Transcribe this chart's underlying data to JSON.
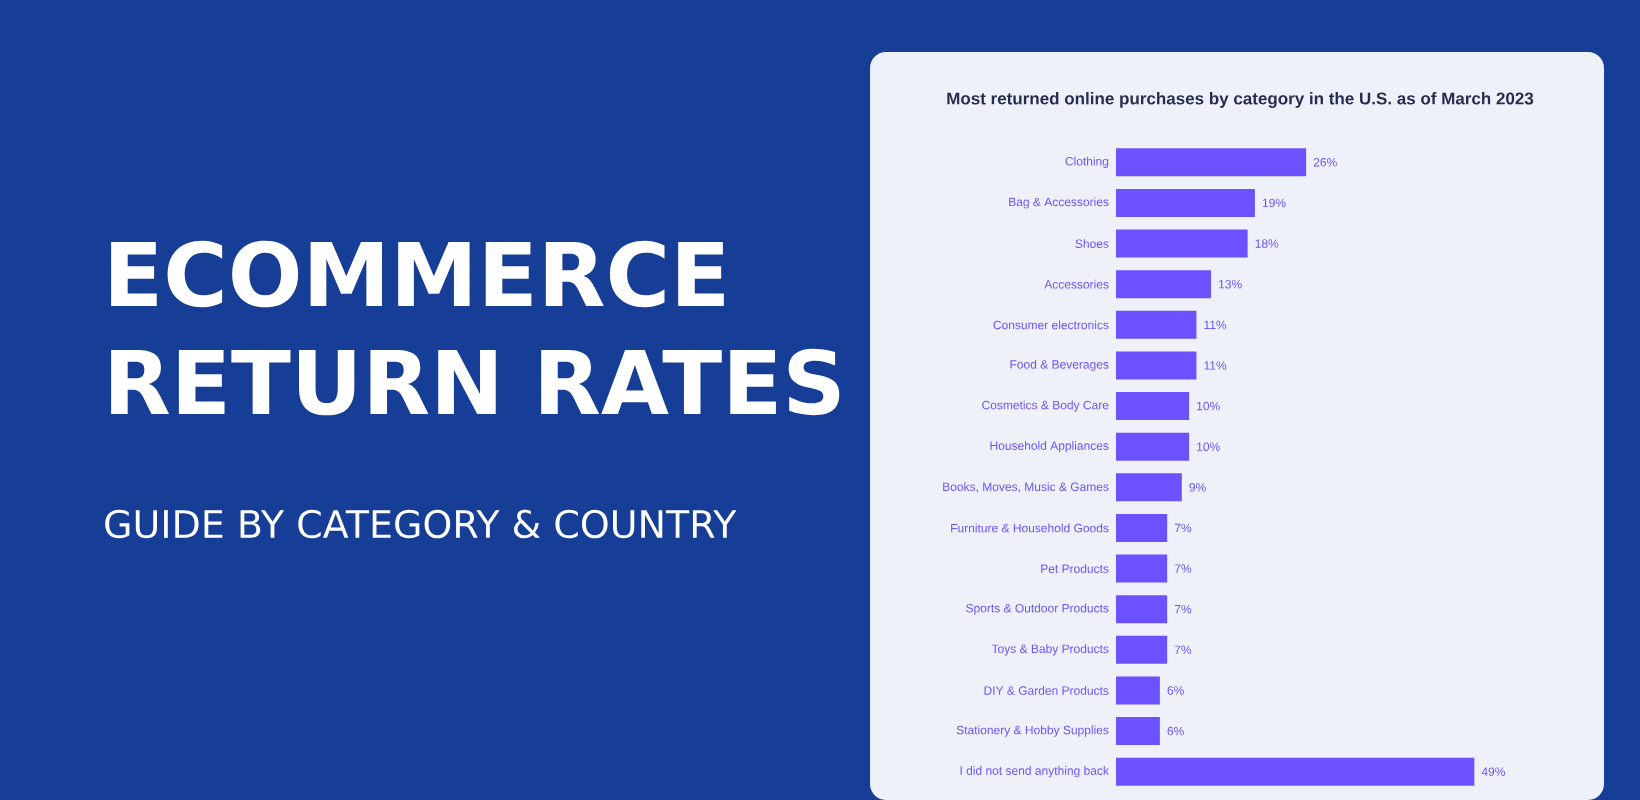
{
  "chart_data": {
    "type": "bar",
    "orientation": "horizontal",
    "title": "Most returned online purchases by category in the U.S.  as of March 2023",
    "annotations": [
      "ECOMMERCE RETURN RATES",
      "GUIDE BY CATEGORY & COUNTRY"
    ],
    "categories": [
      "Clothing",
      "Bag & Accessories",
      "Shoes",
      "Accessories",
      "Consumer electronics",
      "Food & Beverages",
      "Cosmetics & Body Care",
      "Household Appliances",
      "Books, Moves, Music & Games",
      "Furniture & Household Goods",
      "Pet Products",
      "Sports & Outdoor Products",
      "Toys & Baby Products",
      "DIY & Garden Products",
      "Stationery & Hobby Supplies",
      "I did not send anything back"
    ],
    "values": [
      26,
      19,
      18,
      13,
      11,
      11,
      10,
      10,
      9,
      7,
      7,
      7,
      7,
      6,
      6,
      49
    ],
    "value_labels": [
      "26%",
      "19%",
      "18%",
      "13%",
      "11%",
      "11%",
      "10%",
      "10%",
      "9%",
      "7%",
      "7%",
      "7%",
      "7%",
      "6%",
      "6%",
      "49%"
    ],
    "color": "#6c52ff",
    "tick_labels": "y"
  }
}
